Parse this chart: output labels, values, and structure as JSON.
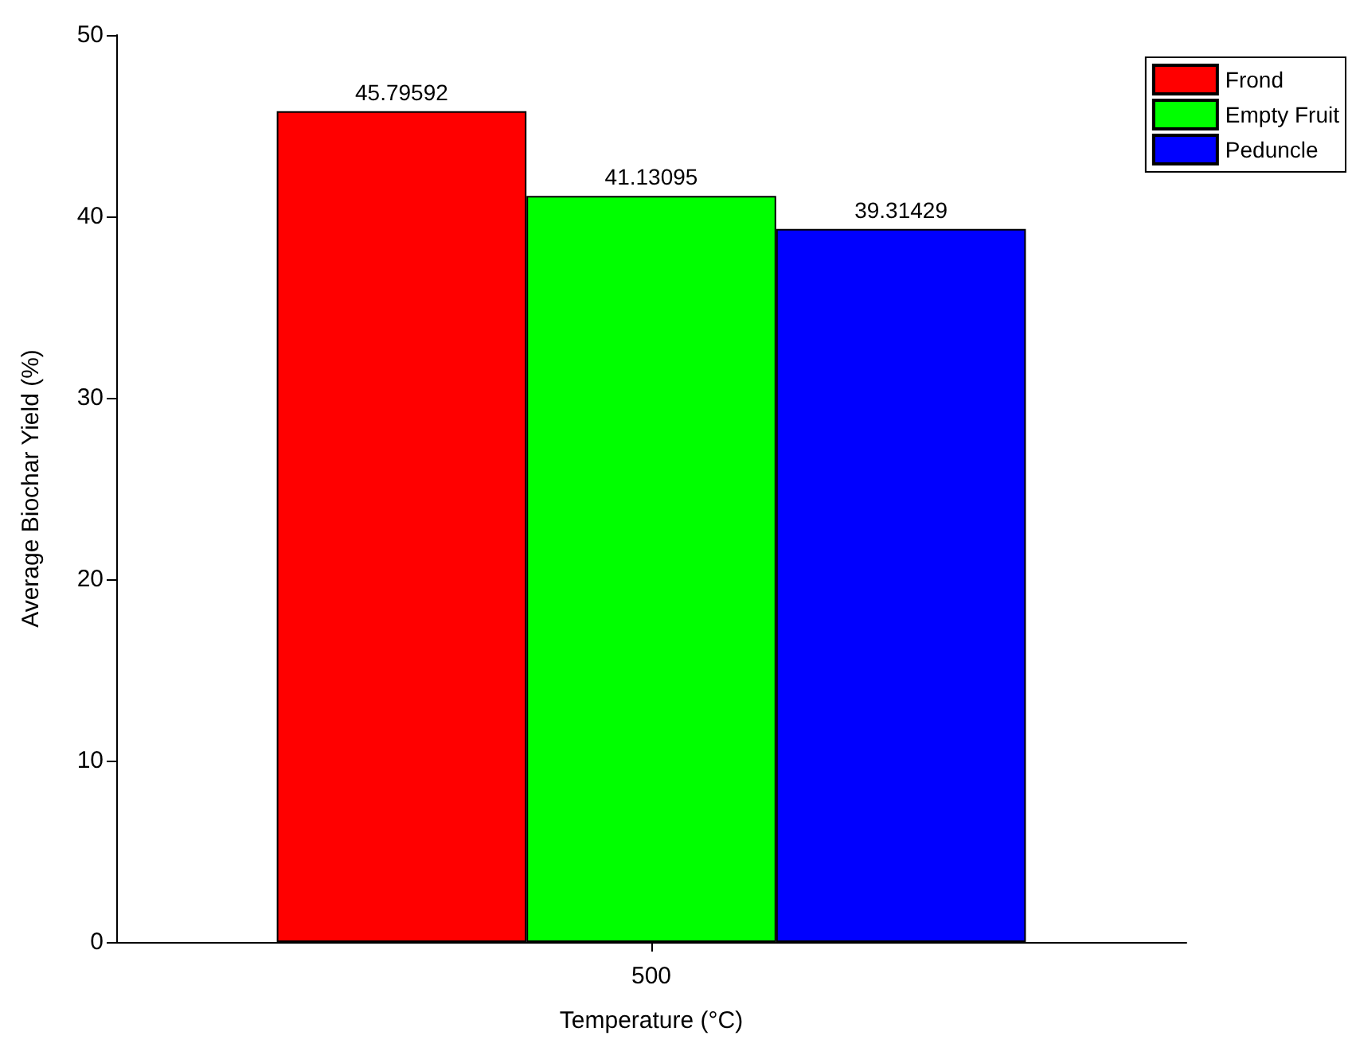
{
  "chart_data": {
    "type": "bar",
    "xlabel": "Temperature (°C)",
    "ylabel": "Average Biochar Yield (%)",
    "categories": [
      "500"
    ],
    "series": [
      {
        "name": "Frond",
        "color": "#ff0000",
        "values": [
          45.79592
        ]
      },
      {
        "name": "Empty Fruit",
        "color": "#00ff00",
        "values": [
          41.13095
        ]
      },
      {
        "name": "Peduncle",
        "color": "#0000ff",
        "values": [
          39.31429
        ]
      }
    ],
    "ylim": [
      0,
      50
    ],
    "yticks": [
      0,
      10,
      20,
      30,
      40,
      50
    ],
    "grid": false,
    "legend": "top right",
    "data_labels": true
  }
}
